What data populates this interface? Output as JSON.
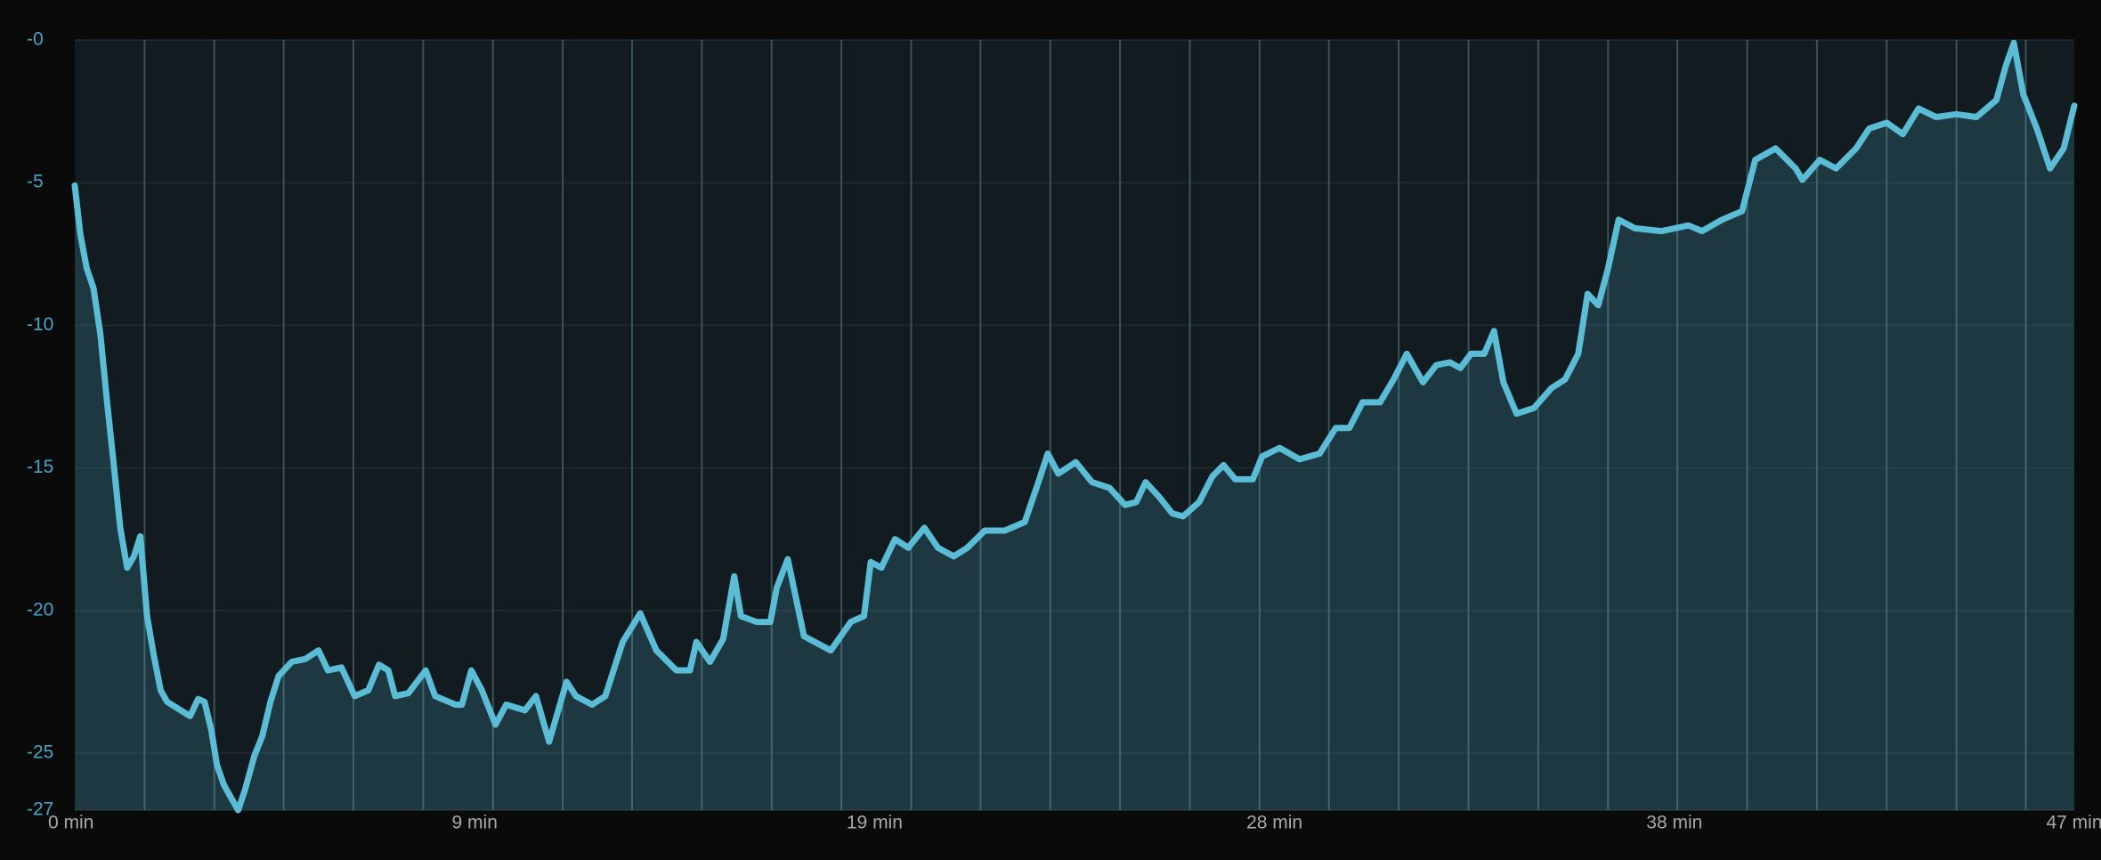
{
  "chart_data": {
    "type": "area",
    "color": "#5bbcd6",
    "ylim": [
      -27,
      0
    ],
    "yticks": [
      {
        "value": 0,
        "label": "-0"
      },
      -5,
      -10,
      -15,
      -20,
      -25,
      -27
    ],
    "xlim": [
      0,
      47
    ],
    "xticks": [
      {
        "value": 0,
        "label": "0 min"
      },
      {
        "value": 9.4,
        "label": "9 min"
      },
      {
        "value": 18.8,
        "label": "19 min"
      },
      {
        "value": 28.2,
        "label": "28 min"
      },
      {
        "value": 37.6,
        "label": "38 min"
      },
      {
        "value": 47,
        "label": "47 min"
      }
    ],
    "markers": [
      1.64,
      3.28,
      4.91,
      6.55,
      8.19,
      9.83,
      11.47,
      13.1,
      14.74,
      16.38,
      18.02,
      19.66,
      21.29,
      22.93,
      24.57,
      26.21,
      27.85,
      29.48,
      31.12,
      32.76,
      34.4,
      36.04,
      37.67,
      39.31,
      40.95,
      42.59,
      44.23,
      45.86
    ],
    "x": [
      0,
      0.13,
      0.28,
      0.44,
      0.6,
      0.76,
      0.91,
      1.07,
      1.23,
      1.39,
      1.54,
      1.7,
      1.86,
      2.02,
      2.17,
      2.49,
      2.71,
      2.9,
      3.05,
      3.21,
      3.34,
      3.5,
      3.65,
      3.84,
      4.0,
      4.22,
      4.41,
      4.6,
      4.79,
      5.1,
      5.42,
      5.73,
      5.95,
      6.27,
      6.58,
      6.9,
      7.15,
      7.37,
      7.53,
      7.84,
      8.25,
      8.47,
      8.95,
      9.1,
      9.32,
      9.57,
      9.89,
      10.14,
      10.58,
      10.84,
      11.15,
      11.56,
      11.78,
      12.16,
      12.47,
      12.88,
      13.29,
      13.67,
      14.14,
      14.46,
      14.61,
      14.93,
      15.24,
      15.5,
      15.66,
      16.03,
      16.35,
      16.5,
      16.76,
      17.14,
      17.77,
      18.24,
      18.55,
      18.71,
      18.96,
      19.28,
      19.59,
      19.97,
      20.29,
      20.66,
      20.98,
      21.39,
      21.86,
      22.33,
      22.65,
      22.87,
      23.12,
      23.53,
      23.91,
      24.32,
      24.69,
      24.95,
      25.17,
      25.48,
      25.8,
      26.05,
      26.43,
      26.74,
      27,
      27.28,
      27.69,
      27.91,
      28.32,
      28.79,
      29.26,
      29.64,
      29.96,
      30.27,
      30.68,
      31,
      31.31,
      31.69,
      32,
      32.32,
      32.57,
      32.82,
      33.13,
      33.36,
      33.58,
      33.89,
      34.3,
      34.71,
      35.03,
      35.34,
      35.56,
      35.81,
      36.04,
      36.29,
      36.67,
      37.3,
      37.93,
      38.25,
      38.72,
      39.19,
      39.5,
      39.98,
      40.45,
      40.61,
      41.02,
      41.4,
      41.87,
      42.18,
      42.59,
      42.97,
      43.34,
      43.75,
      44.23,
      44.7,
      45.17,
      45.39,
      45.58,
      45.8,
      46.12,
      46.43,
      46.75,
      47
    ],
    "values": [
      -5.1,
      -6.8,
      -8,
      -8.7,
      -10.3,
      -12.7,
      -14.8,
      -17.1,
      -18.5,
      -18.1,
      -17.4,
      -20.2,
      -21.6,
      -22.8,
      -23.2,
      -23.5,
      -23.7,
      -23.1,
      -23.2,
      -24.2,
      -25.4,
      -26.1,
      -26.5,
      -27,
      -26.3,
      -25.1,
      -24.4,
      -23.2,
      -22.3,
      -21.8,
      -21.7,
      -21.4,
      -22.1,
      -22,
      -23,
      -22.8,
      -21.9,
      -22.1,
      -23,
      -22.9,
      -22.1,
      -23,
      -23.3,
      -23.3,
      -22.1,
      -22.8,
      -24,
      -23.3,
      -23.5,
      -23,
      -24.6,
      -22.5,
      -23,
      -23.3,
      -23,
      -21.1,
      -20.1,
      -21.4,
      -22.1,
      -22.1,
      -21.1,
      -21.8,
      -21,
      -18.8,
      -20.2,
      -20.4,
      -20.4,
      -19.2,
      -18.2,
      -20.9,
      -21.4,
      -20.4,
      -20.2,
      -18.3,
      -18.5,
      -17.5,
      -17.8,
      -17.1,
      -17.8,
      -18.1,
      -17.8,
      -17.2,
      -17.2,
      -16.9,
      -15.5,
      -14.5,
      -15.2,
      -14.8,
      -15.5,
      -15.7,
      -16.3,
      -16.2,
      -15.5,
      -16,
      -16.6,
      -16.7,
      -16.2,
      -15.3,
      -14.9,
      -15.4,
      -15.4,
      -14.6,
      -14.3,
      -14.7,
      -14.5,
      -13.6,
      -13.6,
      -12.7,
      -12.7,
      -11.9,
      -11,
      -12,
      -11.4,
      -11.3,
      -11.5,
      -11,
      -11,
      -10.2,
      -12,
      -13.1,
      -12.9,
      -12.2,
      -11.9,
      -11,
      -8.9,
      -9.3,
      -8,
      -6.3,
      -6.6,
      -6.7,
      -6.5,
      -6.7,
      -6.3,
      -6,
      -4.2,
      -3.8,
      -4.5,
      -4.9,
      -4.2,
      -4.5,
      -3.8,
      -3.1,
      -2.9,
      -3.3,
      -2.4,
      -2.7,
      -2.6,
      -2.7,
      -2.1,
      -0.9,
      -0.1,
      -1.9,
      -3.1,
      -4.5,
      -3.8,
      -2.3
    ]
  }
}
